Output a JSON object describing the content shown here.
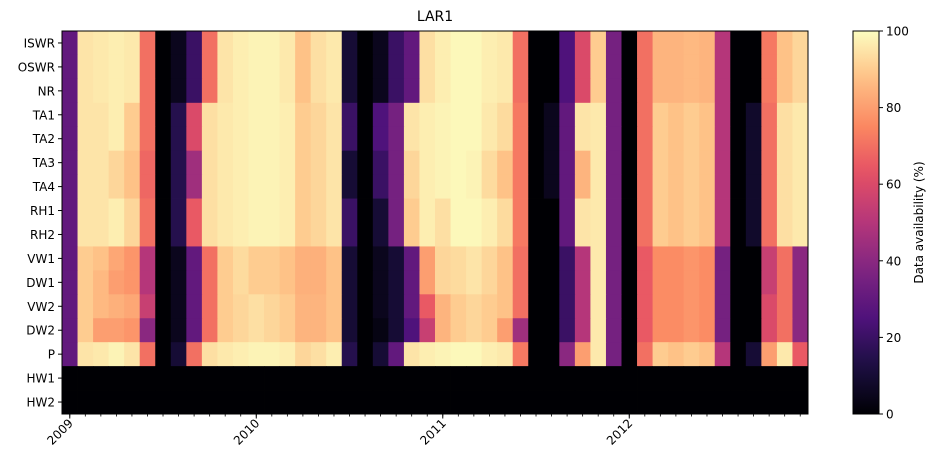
{
  "chart_data": {
    "type": "heatmap",
    "title": "LAR1",
    "xlabel": "",
    "ylabel": "",
    "colorbar_label": "Data availability (%)",
    "colormap": "magma",
    "value_range": [
      0,
      100
    ],
    "colorbar_ticks": [
      0,
      20,
      40,
      60,
      80,
      100
    ],
    "x_start": "2009-01",
    "n_months": 48,
    "x_ticks": [
      {
        "label": "2009",
        "month_index": 0
      },
      {
        "label": "2010",
        "month_index": 12
      },
      {
        "label": "2011",
        "month_index": 24
      },
      {
        "label": "2012",
        "month_index": 36
      }
    ],
    "rows": [
      "ISWR",
      "OSWR",
      "NR",
      "TA1",
      "TA2",
      "TA3",
      "TA4",
      "RH1",
      "RH2",
      "VW1",
      "DW1",
      "VW2",
      "DW2",
      "P",
      "HW1",
      "HW2"
    ],
    "values": [
      [
        30,
        95,
        96,
        97,
        96,
        70,
        0,
        5,
        20,
        70,
        95,
        97,
        98,
        98,
        96,
        88,
        94,
        96,
        10,
        0,
        5,
        20,
        30,
        94,
        97,
        99,
        99,
        97,
        96,
        70,
        0,
        0,
        25,
        60,
        90,
        35,
        0,
        70,
        85,
        85,
        86,
        85,
        50,
        0,
        0,
        72,
        88,
        92
      ],
      [
        30,
        95,
        96,
        97,
        96,
        70,
        0,
        5,
        20,
        70,
        95,
        97,
        98,
        98,
        96,
        88,
        94,
        96,
        10,
        0,
        5,
        20,
        30,
        94,
        97,
        99,
        99,
        97,
        96,
        70,
        0,
        0,
        25,
        60,
        90,
        35,
        0,
        70,
        85,
        85,
        86,
        85,
        50,
        0,
        0,
        72,
        88,
        92
      ],
      [
        30,
        95,
        96,
        97,
        96,
        70,
        0,
        5,
        20,
        70,
        95,
        97,
        98,
        98,
        96,
        88,
        94,
        96,
        10,
        0,
        5,
        20,
        30,
        94,
        97,
        99,
        99,
        97,
        96,
        70,
        0,
        0,
        25,
        60,
        90,
        35,
        0,
        70,
        85,
        85,
        86,
        85,
        50,
        0,
        0,
        72,
        88,
        92
      ],
      [
        30,
        95,
        95,
        97,
        90,
        70,
        0,
        15,
        60,
        94,
        96,
        97,
        98,
        98,
        97,
        90,
        92,
        95,
        20,
        0,
        25,
        35,
        95,
        97,
        98,
        99,
        99,
        96,
        93,
        72,
        0,
        5,
        30,
        95,
        96,
        35,
        0,
        70,
        90,
        88,
        90,
        88,
        50,
        0,
        8,
        70,
        94,
        96
      ],
      [
        30,
        95,
        95,
        97,
        90,
        70,
        0,
        15,
        60,
        94,
        96,
        97,
        98,
        98,
        97,
        90,
        92,
        95,
        20,
        0,
        25,
        35,
        95,
        97,
        98,
        99,
        99,
        96,
        93,
        72,
        0,
        5,
        30,
        95,
        96,
        35,
        0,
        70,
        90,
        88,
        90,
        88,
        50,
        0,
        8,
        70,
        94,
        96
      ],
      [
        30,
        95,
        95,
        92,
        88,
        68,
        0,
        15,
        45,
        94,
        96,
        97,
        98,
        98,
        97,
        90,
        92,
        95,
        10,
        0,
        20,
        35,
        92,
        97,
        98,
        99,
        98,
        93,
        88,
        72,
        0,
        5,
        30,
        85,
        96,
        35,
        0,
        70,
        90,
        88,
        90,
        88,
        50,
        0,
        8,
        70,
        94,
        96
      ],
      [
        30,
        95,
        95,
        92,
        88,
        68,
        0,
        15,
        45,
        94,
        96,
        97,
        98,
        98,
        97,
        90,
        92,
        95,
        10,
        0,
        20,
        35,
        92,
        97,
        98,
        99,
        98,
        93,
        88,
        72,
        0,
        5,
        30,
        85,
        96,
        35,
        0,
        70,
        90,
        88,
        90,
        88,
        50,
        0,
        8,
        70,
        94,
        96
      ],
      [
        30,
        95,
        95,
        97,
        92,
        70,
        0,
        15,
        65,
        94,
        96,
        97,
        98,
        98,
        97,
        90,
        92,
        95,
        20,
        0,
        10,
        35,
        90,
        97,
        94,
        99,
        99,
        97,
        93,
        72,
        0,
        0,
        30,
        95,
        96,
        35,
        0,
        70,
        90,
        88,
        90,
        88,
        50,
        0,
        8,
        70,
        94,
        96
      ],
      [
        30,
        95,
        95,
        97,
        92,
        70,
        0,
        15,
        65,
        94,
        96,
        97,
        98,
        98,
        97,
        90,
        92,
        95,
        20,
        0,
        10,
        35,
        90,
        97,
        94,
        99,
        99,
        97,
        93,
        72,
        0,
        0,
        30,
        95,
        96,
        35,
        0,
        70,
        90,
        88,
        90,
        88,
        50,
        0,
        8,
        70,
        94,
        96
      ],
      [
        30,
        90,
        88,
        82,
        78,
        50,
        0,
        5,
        30,
        70,
        90,
        93,
        90,
        90,
        88,
        84,
        84,
        88,
        10,
        0,
        5,
        10,
        30,
        80,
        92,
        93,
        95,
        92,
        88,
        70,
        0,
        0,
        20,
        50,
        96,
        35,
        0,
        65,
        76,
        76,
        78,
        76,
        35,
        0,
        0,
        55,
        70,
        40
      ],
      [
        30,
        90,
        86,
        80,
        78,
        50,
        0,
        5,
        30,
        70,
        90,
        93,
        90,
        90,
        88,
        84,
        84,
        88,
        10,
        0,
        5,
        10,
        30,
        80,
        92,
        93,
        95,
        92,
        88,
        70,
        0,
        0,
        20,
        50,
        96,
        35,
        0,
        65,
        76,
        76,
        78,
        76,
        35,
        0,
        0,
        55,
        70,
        40
      ],
      [
        30,
        90,
        86,
        84,
        82,
        55,
        0,
        5,
        30,
        70,
        90,
        92,
        94,
        92,
        90,
        85,
        85,
        88,
        10,
        0,
        5,
        10,
        30,
        65,
        85,
        90,
        92,
        90,
        88,
        70,
        0,
        0,
        20,
        50,
        96,
        35,
        0,
        65,
        76,
        76,
        78,
        76,
        35,
        0,
        0,
        60,
        70,
        40
      ],
      [
        30,
        90,
        80,
        80,
        78,
        40,
        0,
        5,
        30,
        70,
        90,
        92,
        94,
        92,
        90,
        85,
        85,
        88,
        10,
        0,
        3,
        10,
        25,
        55,
        85,
        90,
        92,
        90,
        80,
        45,
        0,
        0,
        20,
        50,
        96,
        35,
        0,
        65,
        76,
        76,
        78,
        76,
        35,
        0,
        0,
        60,
        70,
        40
      ],
      [
        30,
        95,
        96,
        98,
        95,
        70,
        0,
        10,
        70,
        94,
        96,
        97,
        98,
        98,
        97,
        92,
        94,
        97,
        15,
        0,
        10,
        30,
        95,
        97,
        98,
        99,
        99,
        97,
        96,
        72,
        0,
        0,
        40,
        80,
        96,
        35,
        0,
        70,
        90,
        88,
        90,
        88,
        50,
        0,
        10,
        80,
        96,
        65
      ],
      [
        0,
        0,
        0,
        0,
        0,
        0,
        0,
        0,
        0,
        0,
        0,
        0,
        0,
        0,
        0,
        0,
        0,
        0,
        0,
        0,
        0,
        0,
        0,
        0,
        0,
        0,
        0,
        0,
        0,
        0,
        0,
        0,
        0,
        0,
        0,
        0,
        0,
        0,
        0,
        0,
        0,
        0,
        0,
        0,
        0,
        0,
        0,
        0
      ],
      [
        0,
        0,
        0,
        0,
        0,
        0,
        0,
        0,
        0,
        0,
        0,
        0,
        0,
        0,
        0,
        0,
        0,
        0,
        0,
        0,
        0,
        0,
        0,
        0,
        0,
        0,
        0,
        0,
        0,
        0,
        0,
        0,
        0,
        0,
        0,
        0,
        0,
        0,
        0,
        0,
        0,
        0,
        0,
        0,
        0,
        0,
        0,
        0
      ]
    ]
  }
}
